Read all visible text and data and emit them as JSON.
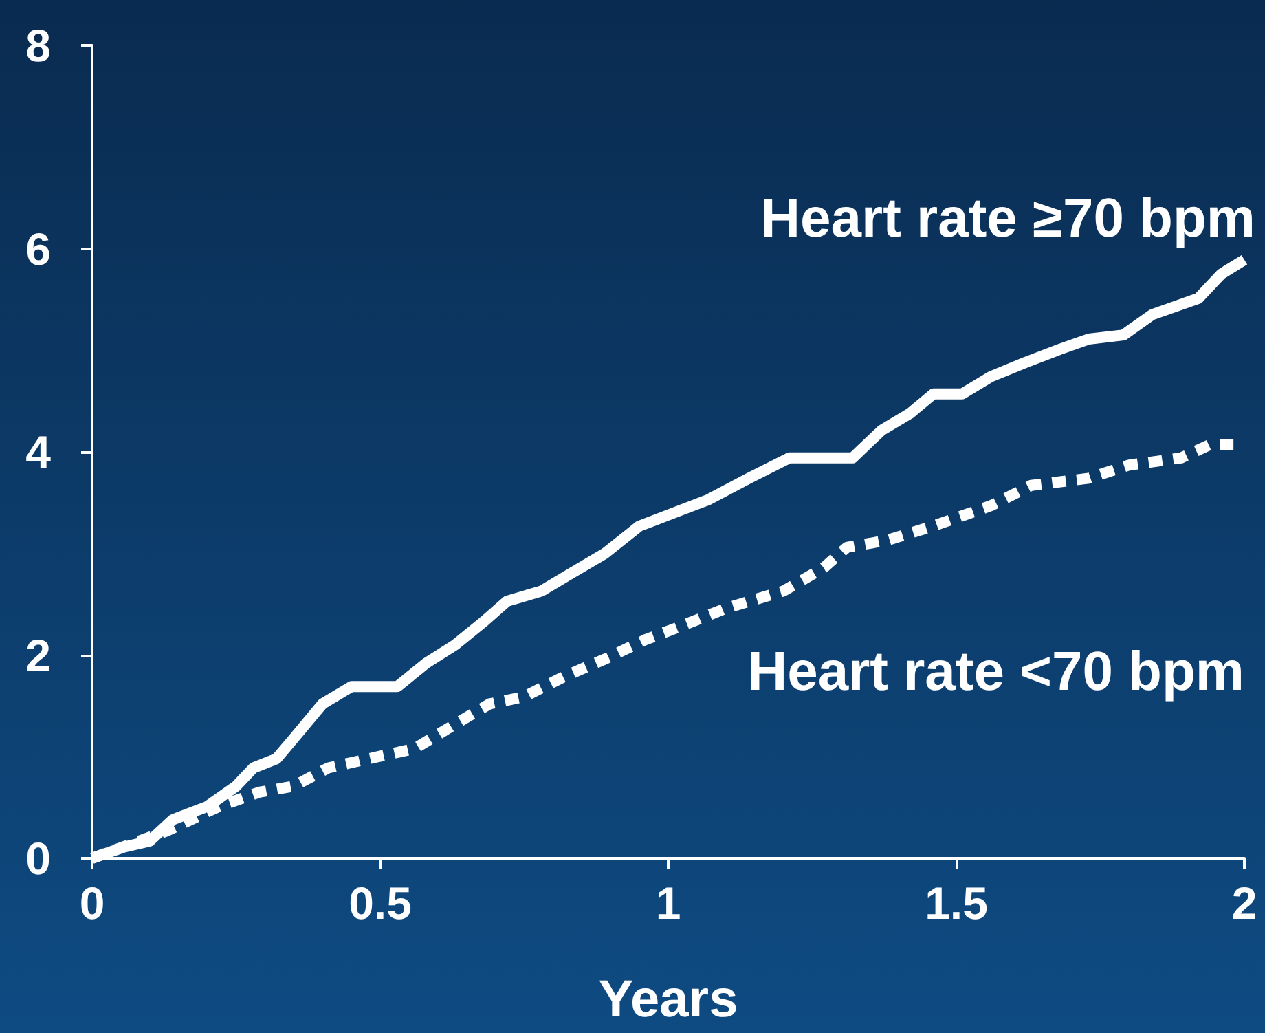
{
  "chart_data": {
    "type": "line",
    "xlabel": "Years",
    "xlim": [
      0,
      2
    ],
    "xticks": [
      0,
      0.5,
      1,
      1.5,
      2
    ],
    "ylim": [
      0,
      8
    ],
    "yticks": [
      0,
      2,
      4,
      6,
      8
    ],
    "grid": false,
    "legend": false,
    "marker": "none",
    "series": [
      {
        "name": "Heart rate ≥70 bpm",
        "color": "#ffffff",
        "line_style": "solid",
        "x": [
          0,
          0.055,
          0.1,
          0.14,
          0.2,
          0.25,
          0.28,
          0.32,
          0.35,
          0.4,
          0.45,
          0.53,
          0.58,
          0.63,
          0.68,
          0.72,
          0.78,
          0.83,
          0.89,
          0.95,
          1.01,
          1.07,
          1.14,
          1.21,
          1.32,
          1.37,
          1.42,
          1.46,
          1.51,
          1.56,
          1.62,
          1.68,
          1.73,
          1.79,
          1.84,
          1.92,
          1.96,
          2
        ],
        "values": [
          0,
          0.11,
          0.17,
          0.38,
          0.51,
          0.71,
          0.89,
          0.98,
          1.18,
          1.52,
          1.69,
          1.69,
          1.92,
          2.1,
          2.33,
          2.53,
          2.63,
          2.8,
          3,
          3.27,
          3.4,
          3.53,
          3.74,
          3.94,
          3.94,
          4.21,
          4.38,
          4.57,
          4.57,
          4.74,
          4.88,
          5.01,
          5.11,
          5.15,
          5.35,
          5.51,
          5.75,
          5.89
        ]
      },
      {
        "name": "Heart rate <70 bpm",
        "color": "#ffffff",
        "line_style": "dashed",
        "x": [
          0,
          0.13,
          0.22,
          0.29,
          0.35,
          0.41,
          0.48,
          0.56,
          0.63,
          0.69,
          0.75,
          0.82,
          0.89,
          0.96,
          1.02,
          1.1,
          1.2,
          1.27,
          1.31,
          1.38,
          1.46,
          1.56,
          1.63,
          1.73,
          1.8,
          1.89,
          1.94,
          2
        ],
        "values": [
          0,
          0.27,
          0.51,
          0.65,
          0.71,
          0.89,
          0.98,
          1.08,
          1.32,
          1.52,
          1.59,
          1.79,
          1.96,
          2.15,
          2.28,
          2.46,
          2.63,
          2.86,
          3.06,
          3.13,
          3.27,
          3.47,
          3.67,
          3.74,
          3.87,
          3.94,
          4.07,
          4.07
        ]
      }
    ]
  }
}
